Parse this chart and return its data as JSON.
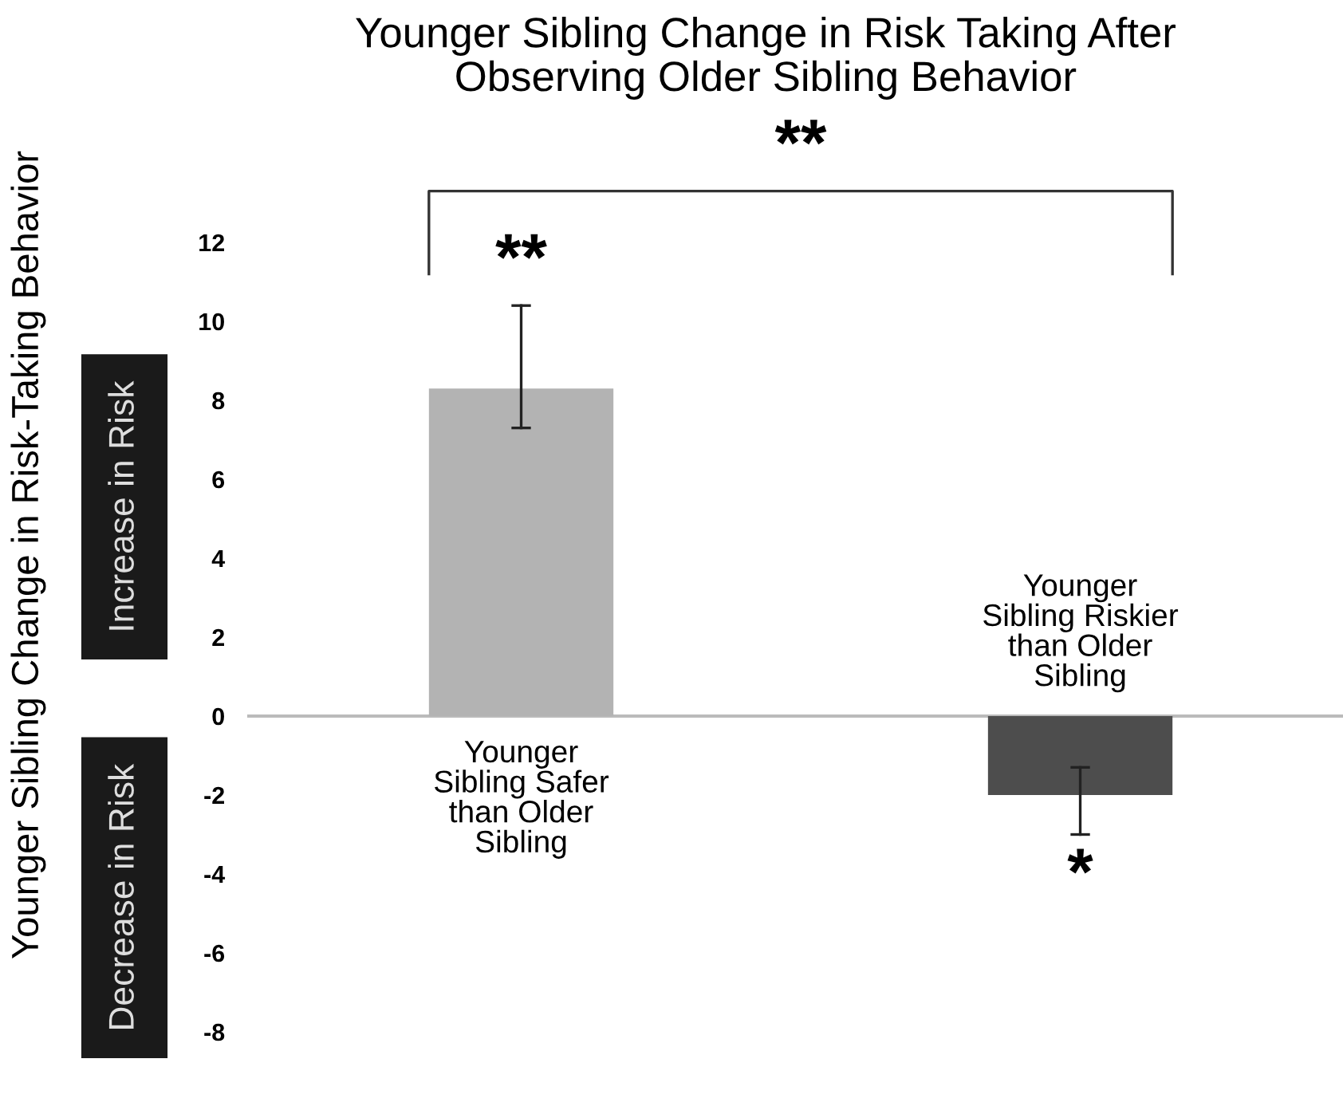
{
  "chart_data": {
    "type": "bar",
    "title": "Younger Sibling Change in Risk Taking After\nObserving Older Sibling Behavior",
    "ylabel": "Younger Sibling Change in Risk-Taking Behavior",
    "categories": [
      "Younger\nSibling Safer\nthan Older\nSibling",
      "Younger\nSibling Riskier\nthan Older\nSibling"
    ],
    "values": [
      8.3,
      -2.0
    ],
    "colors": [
      "#b3b3b3",
      "#4d4d4d"
    ],
    "errors": [
      [
        7.3,
        10.4
      ],
      [
        -3.0,
        -1.3
      ]
    ],
    "ylim": [
      -8,
      12
    ],
    "yticks": [
      -8,
      -6,
      -4,
      -2,
      0,
      2,
      4,
      6,
      8,
      10,
      12
    ],
    "ref_lines": [
      {
        "axis": "y",
        "value": 0,
        "color": "#bbbbbb"
      }
    ],
    "annotations": [
      "**",
      "*",
      "**",
      "Increase in Risk",
      "Decrease in Risk"
    ]
  }
}
